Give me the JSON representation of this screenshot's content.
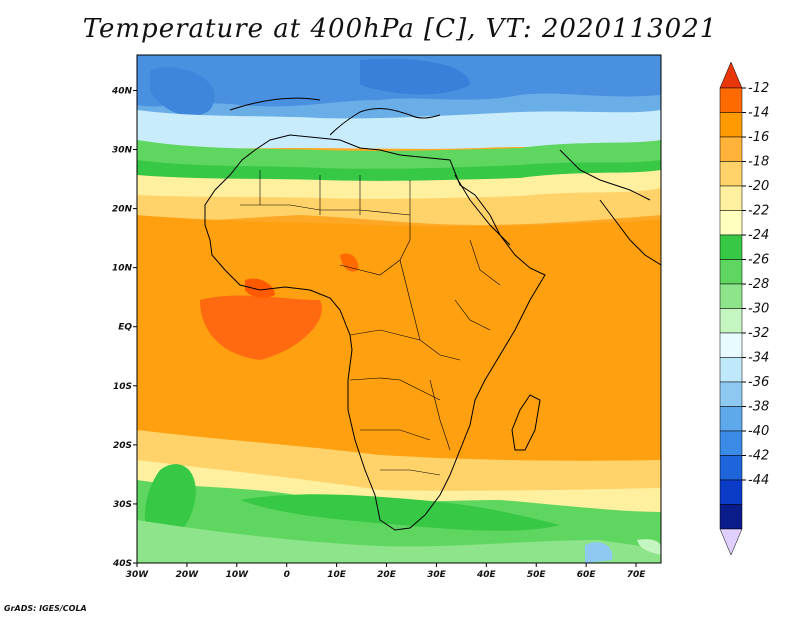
{
  "title": "Temperature at 400hPa [C], VT: 2020113021",
  "footer": "GrADS: IGES/COLA",
  "map": {
    "lon_range": [
      -30,
      75
    ],
    "lat_range": [
      -40,
      46
    ],
    "lat_ticks": [
      {
        "value": 40,
        "label": "40N"
      },
      {
        "value": 30,
        "label": "30N"
      },
      {
        "value": 20,
        "label": "20N"
      },
      {
        "value": 10,
        "label": "10N"
      },
      {
        "value": 0,
        "label": "EQ"
      },
      {
        "value": -10,
        "label": "10S"
      },
      {
        "value": -20,
        "label": "20S"
      },
      {
        "value": -30,
        "label": "30S"
      },
      {
        "value": -40,
        "label": "40S"
      }
    ],
    "lon_ticks": [
      {
        "value": -30,
        "label": "30W"
      },
      {
        "value": -20,
        "label": "20W"
      },
      {
        "value": -10,
        "label": "10W"
      },
      {
        "value": 0,
        "label": "0"
      },
      {
        "value": 10,
        "label": "10E"
      },
      {
        "value": 20,
        "label": "20E"
      },
      {
        "value": 30,
        "label": "30E"
      },
      {
        "value": 40,
        "label": "40E"
      },
      {
        "value": 50,
        "label": "50E"
      },
      {
        "value": 60,
        "label": "60E"
      },
      {
        "value": 70,
        "label": "70E"
      }
    ]
  },
  "colorbar": {
    "labels": [
      "-12",
      "-14",
      "-16",
      "-18",
      "-20",
      "-22",
      "-24",
      "-26",
      "-28",
      "-30",
      "-32",
      "-34",
      "-36",
      "-38",
      "-40",
      "-42",
      "-44"
    ],
    "colors_top_to_bottom": [
      "#e8370a",
      "#ff6a00",
      "#ff9a00",
      "#ffb33a",
      "#ffd36a",
      "#fff0a0",
      "#ffffc0",
      "#37c845",
      "#5fd65f",
      "#8ee48a",
      "#c5f5c0",
      "#e8fbff",
      "#c0e8fb",
      "#8fc8f0",
      "#5ea8ec",
      "#3a8ae6",
      "#1e64da",
      "#0a3cc8",
      "#0a1c8a",
      "#e0d0ff"
    ]
  }
}
